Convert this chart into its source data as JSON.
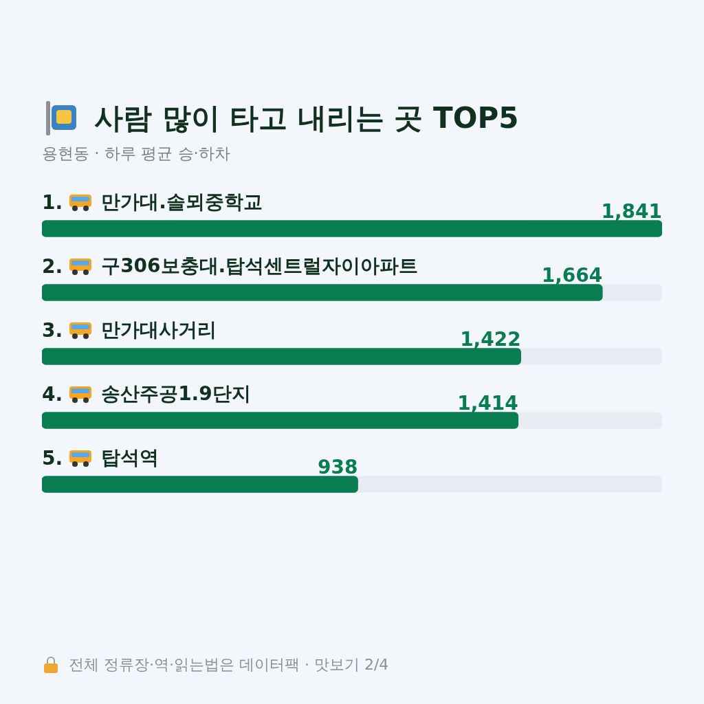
{
  "chart_data": {
    "type": "bar",
    "orientation": "horizontal",
    "title": "사람 많이 타고 내리는 곳 TOP5",
    "subtitle": "용현동 · 하루 평균 승·하차",
    "categories": [
      "1. 만가대.솔뫼중학교",
      "2. 구306보충대.탑석센트럴자이아파트",
      "3. 만가대사거리",
      "4. 송산주공1.9단지",
      "5. 탑석역"
    ],
    "values": [
      1841,
      1664,
      1422,
      1414,
      938
    ],
    "color": "#0a7c52",
    "value_labels": [
      "1,841",
      "1,664",
      "1,422",
      "1,414",
      "938"
    ],
    "annotations": [
      "전체 정류장·역·읽는법은 데이터팩 · 맛보기 2/4"
    ]
  }
}
